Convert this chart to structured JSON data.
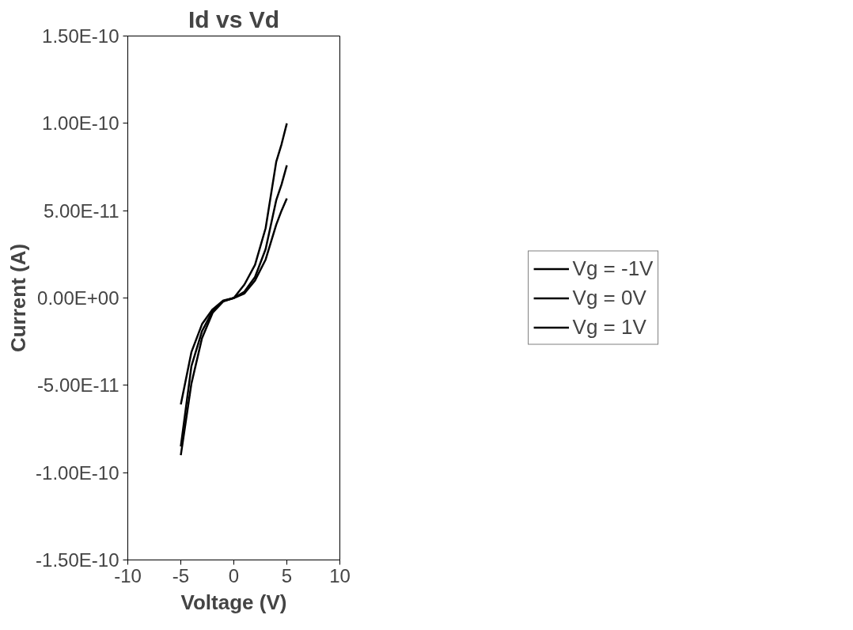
{
  "chart_data": {
    "type": "line",
    "title": "Id vs Vd",
    "xlabel": "Voltage (V)",
    "ylabel": "Current (A)",
    "x": [
      -5,
      -4,
      -3,
      -2,
      -1,
      0,
      1,
      2,
      3,
      4,
      4.5,
      5
    ],
    "series": [
      {
        "name": "Vg = -1V",
        "color": "#000000",
        "values": [
          -9e-11,
          -4.9e-11,
          -2.3e-11,
          -8.5e-12,
          -2e-12,
          0,
          7.7e-12,
          1.9e-11,
          4e-11,
          7.8e-11,
          8.8e-11,
          1e-10
        ]
      },
      {
        "name": "Vg = 0V",
        "color": "#000000",
        "values": [
          -8.5e-11,
          -3.9e-11,
          -1.9e-11,
          -7.5e-12,
          -1.8e-12,
          0,
          3.6e-12,
          1.2e-11,
          2.8e-11,
          5.6e-11,
          6.5e-11,
          7.6e-11
        ]
      },
      {
        "name": "Vg = 1V",
        "color": "#000000",
        "values": [
          -6.1e-11,
          -3.1e-11,
          -1.5e-11,
          -6.5e-12,
          -1.5e-12,
          0,
          2.6e-12,
          1e-11,
          2.2e-11,
          4.2e-11,
          5e-11,
          5.7e-11
        ]
      }
    ],
    "xlim": [
      -10,
      10
    ],
    "xticks": [
      -10,
      -5,
      0,
      5,
      10
    ],
    "ylim": [
      -1.5e-10,
      1.5e-10
    ],
    "yticks": [
      {
        "value": -1.5e-10,
        "label": "-1.50E-10"
      },
      {
        "value": -1e-10,
        "label": "-1.00E-10"
      },
      {
        "value": -5e-11,
        "label": "-5.00E-11"
      },
      {
        "value": 0,
        "label": "0.00E+00"
      },
      {
        "value": 5e-11,
        "label": "5.00E-11"
      },
      {
        "value": 1e-10,
        "label": "1.00E-10"
      },
      {
        "value": 1.5e-10,
        "label": "1.50E-10"
      }
    ],
    "grid": false,
    "legend": "right",
    "marker": "none",
    "line_style": "solid"
  }
}
